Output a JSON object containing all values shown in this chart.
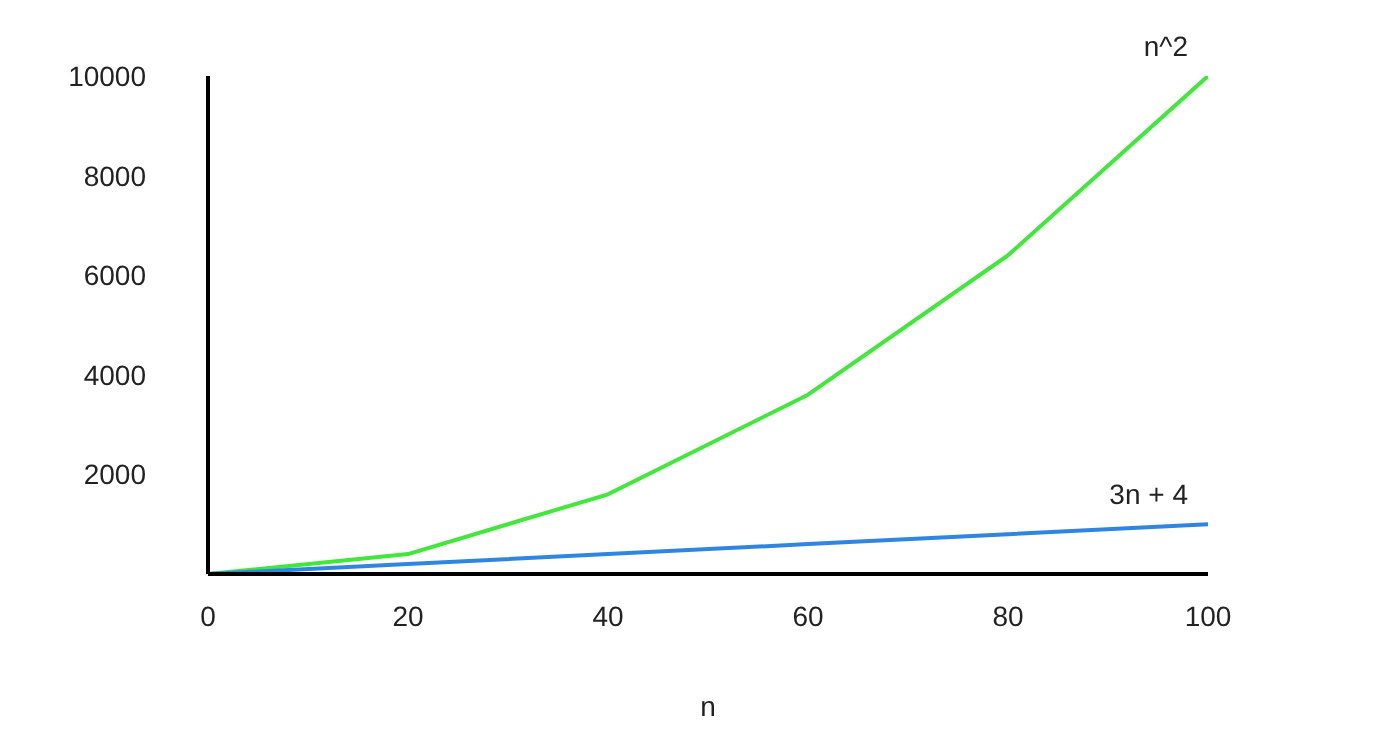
{
  "chart_data": {
    "type": "line",
    "xlabel": "n",
    "x": [
      0,
      20,
      40,
      60,
      80,
      100
    ],
    "xlim": [
      0,
      100
    ],
    "xticks": [
      0,
      20,
      40,
      60,
      80,
      100
    ],
    "ylim": [
      0,
      10000
    ],
    "yticks": [
      2000,
      4000,
      6000,
      8000,
      10000
    ],
    "grid": false,
    "legend": false,
    "marker": "none",
    "line_style": "solid",
    "series": [
      {
        "name": "n^2",
        "color": "#40e83a",
        "values": [
          0,
          400,
          1600,
          3600,
          6400,
          10000
        ]
      },
      {
        "name": "3n + 4",
        "color": "#2f86e0",
        "values": [
          0,
          200,
          400,
          600,
          800,
          1000
        ]
      }
    ]
  }
}
